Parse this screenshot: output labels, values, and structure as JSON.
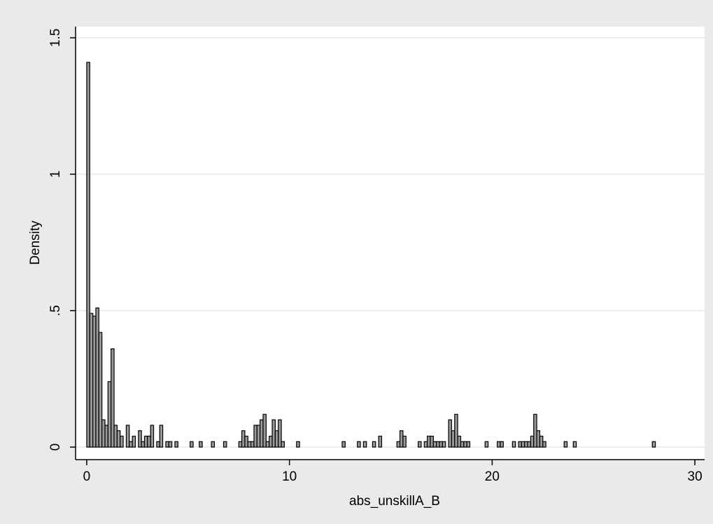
{
  "chart_data": {
    "type": "histogram",
    "xlabel": "abs_unskillA_B",
    "ylabel": "Density",
    "bins": [
      0,
      0.15,
      0.3,
      0.45,
      0.6,
      0.75,
      0.9,
      1.05,
      1.2,
      1.35,
      1.5,
      1.65,
      1.8,
      1.95,
      2.1,
      2.25,
      2.4,
      2.55,
      2.7,
      2.85,
      3,
      3.15,
      3.3,
      3.45,
      3.6,
      3.75,
      3.9,
      4.05,
      4.2,
      4.35,
      4.5,
      4.65,
      4.8,
      4.95,
      5.1,
      5.25,
      5.4,
      5.55,
      5.7,
      5.85,
      6,
      6.15,
      6.3,
      6.45,
      6.6,
      6.75,
      6.9,
      7.05,
      7.2,
      7.35,
      7.5,
      7.65,
      7.8,
      7.95,
      8.1,
      8.25,
      8.4,
      8.55,
      8.7,
      8.85,
      9,
      9.15,
      9.3,
      9.45,
      9.6,
      9.75,
      9.9,
      10.05,
      10.2,
      10.35,
      10.5,
      10.65,
      10.8,
      10.95,
      11.1,
      11.25,
      11.4,
      11.55,
      11.7,
      11.85,
      12,
      12.15,
      12.3,
      12.45,
      12.6,
      12.75,
      12.9,
      13.05,
      13.2,
      13.35,
      13.5,
      13.65,
      13.8,
      13.95,
      14.1,
      14.25,
      14.4,
      14.55,
      14.7,
      14.85,
      15,
      15.15,
      15.3,
      15.45,
      15.6,
      15.75,
      15.9,
      16.05,
      16.2,
      16.35,
      16.5,
      16.65,
      16.8,
      16.95,
      17.1,
      17.25,
      17.4,
      17.55,
      17.7,
      17.85,
      18,
      18.15,
      18.3,
      18.45,
      18.6,
      18.75,
      18.9,
      19.05,
      19.2,
      19.35,
      19.5,
      19.65,
      19.8,
      19.95,
      20.1,
      20.25,
      20.4,
      20.55,
      20.7,
      20.85,
      21,
      21.15,
      21.3,
      21.45,
      21.6,
      21.75,
      21.9,
      22.05,
      22.2,
      22.35,
      22.5,
      22.65,
      22.8,
      22.95,
      23.1,
      23.25,
      23.4,
      23.55,
      23.7,
      23.85,
      24,
      24.15,
      24.3,
      24.45,
      24.6,
      24.75,
      24.9,
      25.05,
      25.2,
      25.35,
      25.5,
      25.65,
      25.8,
      25.95,
      26.1,
      26.25,
      26.4,
      26.55,
      26.7,
      26.85,
      27,
      27.15,
      27.3,
      27.45,
      27.6,
      27.75,
      27.9,
      28.05
    ],
    "values": [
      1.41,
      0.49,
      0.48,
      0.51,
      0.42,
      0.1,
      0.08,
      0.24,
      0.36,
      0.08,
      0.06,
      0.04,
      0,
      0.08,
      0.02,
      0.04,
      0,
      0.06,
      0.02,
      0.04,
      0.04,
      0.08,
      0,
      0.02,
      0.08,
      0,
      0.02,
      0.02,
      0,
      0.02,
      0,
      0,
      0,
      0,
      0.02,
      0,
      0,
      0.02,
      0,
      0,
      0,
      0.02,
      0,
      0,
      0,
      0.02,
      0,
      0,
      0,
      0,
      0.02,
      0.06,
      0.04,
      0.02,
      0.02,
      0.08,
      0.08,
      0.1,
      0.12,
      0.02,
      0.04,
      0.1,
      0.06,
      0.1,
      0.02,
      0,
      0,
      0,
      0,
      0.02,
      0,
      0,
      0,
      0,
      0,
      0,
      0,
      0,
      0,
      0,
      0,
      0,
      0,
      0,
      0.02,
      0,
      0,
      0,
      0,
      0.02,
      0,
      0.02,
      0,
      0,
      0.02,
      0,
      0.04,
      0,
      0,
      0,
      0,
      0,
      0.02,
      0.06,
      0.04,
      0,
      0,
      0,
      0,
      0.02,
      0,
      0.02,
      0.04,
      0.04,
      0.02,
      0.02,
      0.02,
      0.02,
      0,
      0.1,
      0.06,
      0.12,
      0.04,
      0.02,
      0.02,
      0.02,
      0,
      0,
      0,
      0,
      0,
      0.02,
      0,
      0,
      0,
      0.02,
      0.02,
      0,
      0,
      0,
      0.02,
      0,
      0.02,
      0.02,
      0.02,
      0.02,
      0.04,
      0.12,
      0.06,
      0.04,
      0.02,
      0,
      0,
      0,
      0,
      0,
      0,
      0.02,
      0,
      0,
      0.02,
      0,
      0,
      0,
      0,
      0,
      0,
      0,
      0,
      0,
      0,
      0,
      0,
      0,
      0,
      0,
      0,
      0,
      0,
      0,
      0,
      0,
      0,
      0,
      0,
      0,
      0.02
    ],
    "color": "#999999",
    "xlim": [
      -0.55,
      30.48
    ],
    "ylim": [
      -0.046,
      1.541
    ],
    "xticks": [
      0,
      10,
      20,
      30
    ],
    "yticks": [
      0,
      {
        "value": 0.5,
        "label": ".5"
      },
      1,
      1.5
    ],
    "grid": true
  }
}
